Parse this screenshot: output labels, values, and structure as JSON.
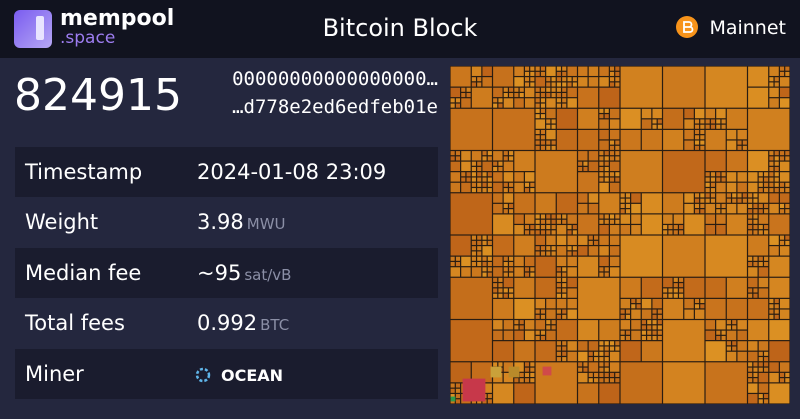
{
  "header": {
    "logo": "mempool",
    "logo_suffix": ".space",
    "title": "Bitcoin Block",
    "network": "Mainnet"
  },
  "block": {
    "height": "824915",
    "hash_start": "00000000000000000…",
    "hash_end": "…d778e2ed6edfeb01e"
  },
  "table": {
    "rows": [
      {
        "label": "Timestamp",
        "value": "2024-01-08 23:09"
      },
      {
        "label": "Weight",
        "value": "3.98",
        "unit": "MWU"
      },
      {
        "label": "Median fee",
        "value": "~95",
        "unit": "sat/vB"
      },
      {
        "label": "Total fees",
        "value": "0.992",
        "unit": "BTC"
      },
      {
        "label": "Miner",
        "value": "OCEAN"
      }
    ]
  }
}
